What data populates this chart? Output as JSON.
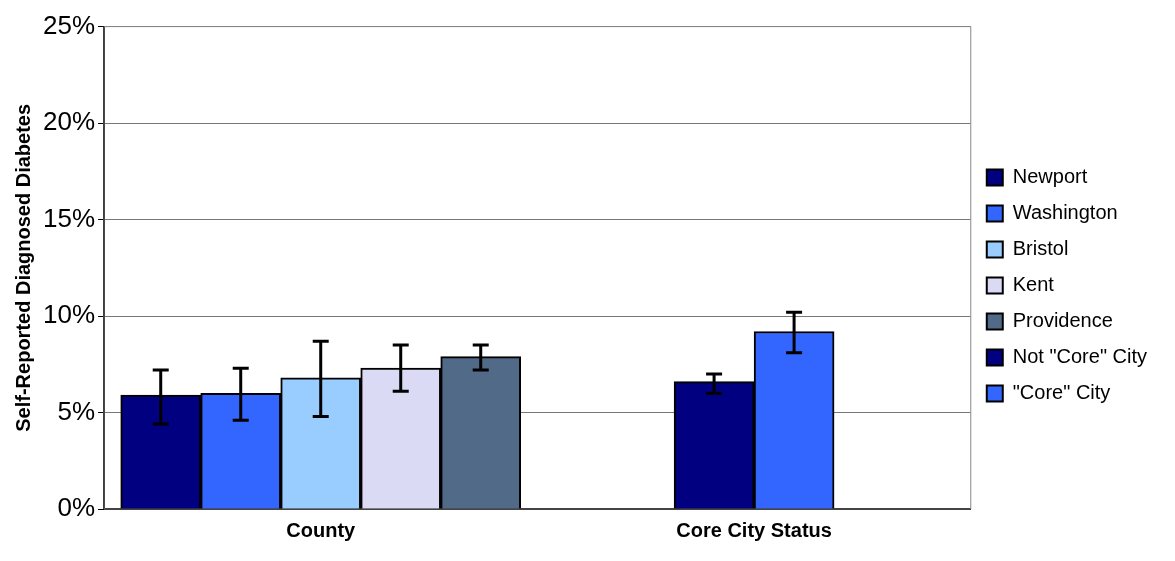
{
  "chart_data": {
    "type": "bar",
    "ylabel": "Self-Reported Diagnosed Diabetes",
    "categories": [
      "County",
      "Core City Status"
    ],
    "series": [
      {
        "name": "Newport",
        "color": "#000080",
        "values": [
          5.9,
          null
        ],
        "errors": [
          [
            4.4,
            7.2
          ],
          null
        ]
      },
      {
        "name": "Washington",
        "color": "#3366ff",
        "values": [
          6.0,
          null
        ],
        "errors": [
          [
            4.6,
            7.3
          ],
          null
        ]
      },
      {
        "name": "Bristol",
        "color": "#99ccff",
        "values": [
          6.8,
          null
        ],
        "errors": [
          [
            4.8,
            8.7
          ],
          null
        ]
      },
      {
        "name": "Kent",
        "color": "#dadaf4",
        "values": [
          7.3,
          null
        ],
        "errors": [
          [
            6.1,
            8.5
          ],
          null
        ]
      },
      {
        "name": "Providence",
        "color": "#506a88",
        "values": [
          7.9,
          null
        ],
        "errors": [
          [
            7.2,
            8.5
          ],
          null
        ]
      },
      {
        "name": "Not \"Core\" City",
        "color": "#000080",
        "values": [
          null,
          6.6
        ],
        "errors": [
          null,
          [
            6.0,
            7.0
          ]
        ]
      },
      {
        "name": "\"Core\" City",
        "color": "#3366ff",
        "values": [
          null,
          9.2
        ],
        "errors": [
          null,
          [
            8.1,
            10.2
          ]
        ]
      }
    ],
    "ylim": [
      0,
      25
    ],
    "yticks": [
      {
        "value": 0,
        "label": "0%"
      },
      {
        "value": 5,
        "label": "5%"
      },
      {
        "value": 10,
        "label": "10%"
      },
      {
        "value": 15,
        "label": "15%"
      },
      {
        "value": 20,
        "label": "20%"
      },
      {
        "value": 25,
        "label": "25%"
      }
    ],
    "grid": "y",
    "legend": "right"
  }
}
